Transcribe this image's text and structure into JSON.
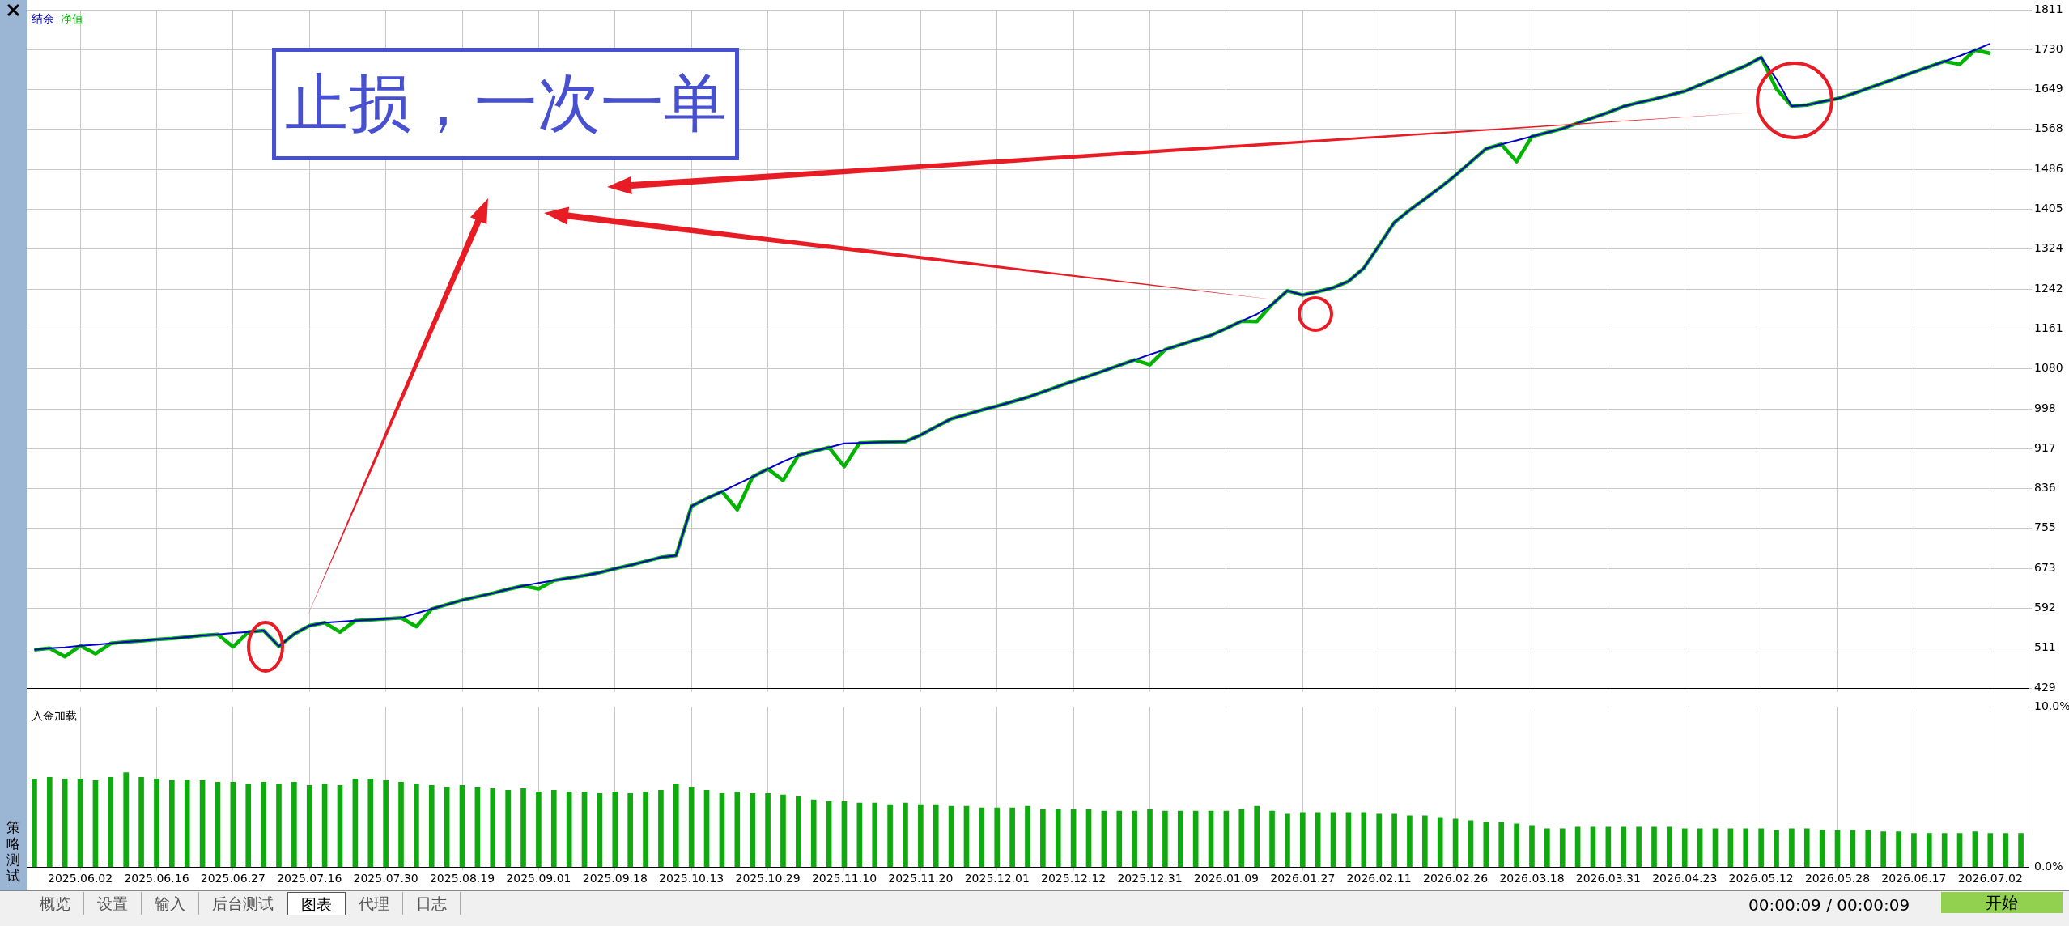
{
  "chart_data": [
    {
      "type": "line",
      "annotations": [
        "止损，一次一单"
      ],
      "legend": "top left",
      "marker": "none",
      "grid": true,
      "tick_labels": "y",
      "ylim": [
        429,
        1811
      ],
      "categories": [
        null,
        null,
        null,
        "2025.06.02",
        null,
        null,
        null,
        null,
        "2025.06.16",
        null,
        null,
        null,
        null,
        "2025.06.27",
        null,
        null,
        null,
        null,
        "2025.07.16",
        null,
        null,
        null,
        null,
        "2025.07.30",
        null,
        null,
        null,
        null,
        "2025.08.19",
        null,
        null,
        null,
        null,
        "2025.09.01",
        null,
        null,
        null,
        null,
        "2025.09.18",
        null,
        null,
        null,
        null,
        "2025.10.13",
        null,
        null,
        null,
        null,
        "2025.10.29",
        null,
        null,
        null,
        null,
        "2025.11.10",
        null,
        null,
        null,
        null,
        "2025.11.20",
        null,
        null,
        null,
        null,
        "2025.12.01",
        null,
        null,
        null,
        null,
        "2025.12.12",
        null,
        null,
        null,
        null,
        "2025.12.31",
        null,
        null,
        null,
        null,
        "2026.01.09",
        null,
        null,
        null,
        null,
        "2026.01.27",
        null,
        null,
        null,
        null,
        "2026.02.11",
        null,
        null,
        null,
        null,
        "2026.02.26",
        null,
        null,
        null,
        null,
        "2026.03.18",
        null,
        null,
        null,
        null,
        "2026.03.31",
        null,
        null,
        null,
        null,
        "2026.04.23",
        null,
        null,
        null,
        null,
        "2026.05.12",
        null,
        null,
        null,
        null,
        "2026.05.28",
        null,
        null,
        null,
        null,
        "2026.06.17",
        null,
        null,
        null,
        null,
        "2026.07.02",
        null,
        null
      ],
      "yticks": [
        429,
        511,
        592,
        673,
        755,
        836,
        917,
        998,
        1080,
        1161,
        1242,
        1324,
        1405,
        1486,
        1568,
        1649,
        1730,
        1811
      ],
      "series": [
        {
          "name": "结余",
          "color": "#0000c8",
          "values": [
            508,
            511,
            513,
            516,
            518,
            521,
            524,
            526,
            529,
            531,
            534,
            537,
            539,
            542,
            544,
            547,
            515,
            540,
            557,
            563,
            565,
            567,
            569,
            571,
            573,
            582,
            591,
            600,
            609,
            616,
            623,
            631,
            638,
            644,
            649,
            654,
            659,
            665,
            673,
            680,
            688,
            696,
            700,
            800,
            816,
            830,
            845,
            860,
            876,
            891,
            904,
            912,
            920,
            928,
            929,
            930,
            931,
            932,
            945,
            962,
            978,
            987,
            996,
            1004,
            1013,
            1022,
            1033,
            1044,
            1055,
            1065,
            1076,
            1087,
            1098,
            1109,
            1119,
            1129,
            1139,
            1148,
            1162,
            1177,
            1191,
            1211,
            1239,
            1230,
            1237,
            1245,
            1258,
            1285,
            1331,
            1378,
            1403,
            1426,
            1449,
            1474,
            1501,
            1528,
            1537,
            1545,
            1553,
            1561,
            1569,
            1580,
            1591,
            1602,
            1614,
            1622,
            1629,
            1637,
            1645,
            1658,
            1671,
            1684,
            1697,
            1714,
            1670,
            1615,
            1617,
            1624,
            1630,
            1640,
            1651,
            1662,
            1673,
            1684,
            1695,
            1706,
            1717,
            1729,
            1742,
            null,
            null
          ]
        },
        {
          "name": "净值",
          "color": "#00b400",
          "values": [
            508,
            511,
            494,
            516,
            500,
            521,
            524,
            526,
            529,
            531,
            534,
            537,
            539,
            514,
            544,
            547,
            515,
            540,
            557,
            563,
            544,
            567,
            569,
            571,
            573,
            555,
            591,
            600,
            609,
            616,
            623,
            631,
            638,
            632,
            649,
            654,
            659,
            665,
            673,
            680,
            688,
            696,
            700,
            800,
            816,
            830,
            793,
            860,
            876,
            853,
            904,
            912,
            920,
            881,
            929,
            930,
            931,
            932,
            945,
            962,
            978,
            987,
            996,
            1004,
            1013,
            1022,
            1033,
            1044,
            1055,
            1065,
            1076,
            1087,
            1098,
            1088,
            1119,
            1129,
            1139,
            1148,
            1162,
            1177,
            1176,
            1211,
            1239,
            1230,
            1237,
            1245,
            1258,
            1285,
            1331,
            1378,
            1403,
            1426,
            1449,
            1474,
            1501,
            1528,
            1537,
            1502,
            1553,
            1561,
            1569,
            1580,
            1591,
            1602,
            1614,
            1622,
            1629,
            1637,
            1645,
            1658,
            1671,
            1684,
            1697,
            1714,
            1650,
            1615,
            1617,
            1624,
            1630,
            1640,
            1651,
            1662,
            1673,
            1684,
            1695,
            1706,
            1700,
            1729,
            1722,
            null,
            null
          ]
        }
      ]
    },
    {
      "type": "bar",
      "title": "入金加载",
      "grid": "x",
      "ylim": [
        0,
        10
      ],
      "categories": [
        null,
        null,
        null,
        "2025.06.02",
        null,
        null,
        null,
        null,
        "2025.06.16",
        null,
        null,
        null,
        null,
        "2025.06.27",
        null,
        null,
        null,
        null,
        "2025.07.16",
        null,
        null,
        null,
        null,
        "2025.07.30",
        null,
        null,
        null,
        null,
        "2025.08.19",
        null,
        null,
        null,
        null,
        "2025.09.01",
        null,
        null,
        null,
        null,
        "2025.09.18",
        null,
        null,
        null,
        null,
        "2025.10.13",
        null,
        null,
        null,
        null,
        "2025.10.29",
        null,
        null,
        null,
        null,
        "2025.11.10",
        null,
        null,
        null,
        null,
        "2025.11.20",
        null,
        null,
        null,
        null,
        "2025.12.01",
        null,
        null,
        null,
        null,
        "2025.12.12",
        null,
        null,
        null,
        null,
        "2025.12.31",
        null,
        null,
        null,
        null,
        "2026.01.09",
        null,
        null,
        null,
        null,
        "2026.01.27",
        null,
        null,
        null,
        null,
        "2026.02.11",
        null,
        null,
        null,
        null,
        "2026.02.26",
        null,
        null,
        null,
        null,
        "2026.03.18",
        null,
        null,
        null,
        null,
        "2026.03.31",
        null,
        null,
        null,
        null,
        "2026.04.23",
        null,
        null,
        null,
        null,
        "2026.05.12",
        null,
        null,
        null,
        null,
        "2026.05.28",
        null,
        null,
        null,
        null,
        "2026.06.17",
        null,
        null,
        null,
        null,
        "2026.07.02",
        null,
        null
      ],
      "yticks": [
        {
          "value": 0,
          "label": "0.0%"
        },
        {
          "value": 10,
          "label": "10.0%"
        }
      ],
      "series": [
        {
          "color": "#10aa10",
          "values": [
            5.5,
            5.6,
            5.5,
            5.5,
            5.4,
            5.6,
            5.9,
            5.6,
            5.5,
            5.4,
            5.4,
            5.4,
            5.3,
            5.3,
            5.2,
            5.3,
            5.2,
            5.3,
            5.1,
            5.2,
            5.1,
            5.5,
            5.5,
            5.4,
            5.3,
            5.2,
            5.1,
            5.0,
            5.1,
            5.0,
            4.9,
            4.8,
            4.9,
            4.7,
            4.8,
            4.7,
            4.7,
            4.6,
            4.7,
            4.6,
            4.7,
            4.8,
            5.2,
            5.0,
            4.8,
            4.6,
            4.7,
            4.6,
            4.6,
            4.5,
            4.4,
            4.2,
            4.1,
            4.1,
            4.0,
            4.0,
            3.9,
            4.0,
            3.9,
            3.9,
            3.8,
            3.8,
            3.7,
            3.7,
            3.7,
            3.8,
            3.6,
            3.6,
            3.6,
            3.6,
            3.5,
            3.5,
            3.5,
            3.6,
            3.5,
            3.5,
            3.5,
            3.5,
            3.5,
            3.6,
            3.8,
            3.5,
            3.3,
            3.4,
            3.4,
            3.4,
            3.4,
            3.4,
            3.3,
            3.3,
            3.2,
            3.2,
            3.1,
            3.0,
            2.9,
            2.8,
            2.8,
            2.7,
            2.6,
            2.4,
            2.4,
            2.5,
            2.5,
            2.5,
            2.5,
            2.5,
            2.5,
            2.5,
            2.4,
            2.4,
            2.4,
            2.4,
            2.4,
            2.4,
            2.3,
            2.4,
            2.4,
            2.3,
            2.3,
            2.3,
            2.3,
            2.2,
            2.2,
            2.1,
            2.1,
            2.1,
            2.1,
            2.2,
            2.1,
            2.1,
            2.1
          ]
        }
      ]
    },
    {
      "type": "other",
      "annotations": [
        "策略测试",
        "概览",
        "设置",
        "输入",
        "后台测试",
        "图表",
        "代理",
        "日志",
        "00:00:09 / 00:00:09",
        "开始"
      ]
    }
  ]
}
